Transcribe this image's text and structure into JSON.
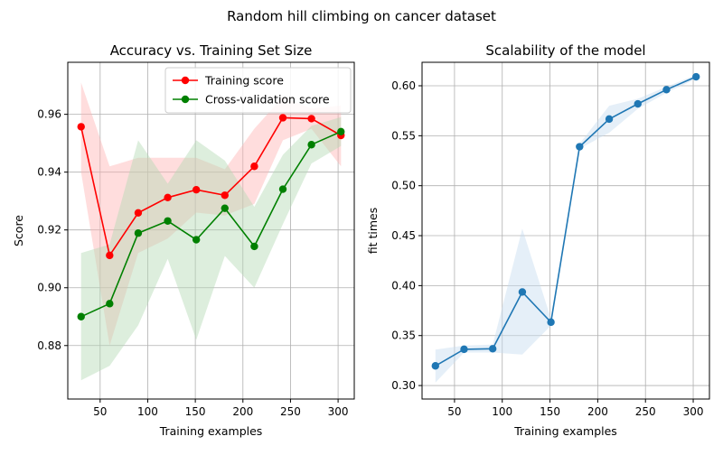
{
  "suptitle": "Random hill climbing on cancer dataset",
  "chart_data": [
    {
      "type": "line",
      "title": "Accuracy vs. Training Set Size",
      "xlabel": "Training examples",
      "ylabel": "Score",
      "xlim": [
        16,
        317
      ],
      "ylim": [
        0.8615,
        0.978
      ],
      "xticks": [
        50,
        100,
        150,
        200,
        250,
        300
      ],
      "yticks": [
        0.88,
        0.9,
        0.92,
        0.94,
        0.96
      ],
      "ytick_labels": [
        "0.88",
        "0.90",
        "0.92",
        "0.94",
        "0.96"
      ],
      "grid": true,
      "legend": "top-right",
      "x": [
        30,
        60,
        90,
        121,
        151,
        181,
        212,
        242,
        272,
        303
      ],
      "series": [
        {
          "name": "Training score",
          "color": "#ff0000",
          "fill_color": "#ffb3b3",
          "values": [
            0.9557,
            0.9112,
            0.9259,
            0.9312,
            0.9339,
            0.932,
            0.942,
            0.9588,
            0.9585,
            0.9527
          ],
          "lower": [
            0.94,
            0.88,
            0.912,
            0.917,
            0.926,
            0.925,
            0.929,
            0.951,
            0.955,
            0.942
          ],
          "upper": [
            0.971,
            0.942,
            0.945,
            0.945,
            0.945,
            0.941,
            0.955,
            0.966,
            0.962,
            0.963
          ]
        },
        {
          "name": "Cross-validation score",
          "color": "#008000",
          "fill_color": "#b3d9b3",
          "values": [
            0.89,
            0.8945,
            0.9189,
            0.9231,
            0.9166,
            0.9275,
            0.9143,
            0.9341,
            0.9495,
            0.954
          ],
          "lower": [
            0.868,
            0.873,
            0.887,
            0.91,
            0.882,
            0.911,
            0.9,
            0.922,
            0.943,
            0.949
          ],
          "upper": [
            0.912,
            0.915,
            0.951,
            0.936,
            0.951,
            0.944,
            0.928,
            0.946,
            0.956,
            0.959
          ]
        }
      ]
    },
    {
      "type": "line",
      "title": "Scalability of the model",
      "xlabel": "Training examples",
      "ylabel": "fit times",
      "xlim": [
        16,
        317
      ],
      "ylim": [
        0.2865,
        0.6235
      ],
      "xticks": [
        50,
        100,
        150,
        200,
        250,
        300
      ],
      "yticks": [
        0.3,
        0.35,
        0.4,
        0.45,
        0.5,
        0.55,
        0.6
      ],
      "ytick_labels": [
        "0.30",
        "0.35",
        "0.40",
        "0.45",
        "0.50",
        "0.55",
        "0.60"
      ],
      "grid": true,
      "x": [
        30,
        60,
        90,
        121,
        151,
        181,
        212,
        242,
        272,
        303
      ],
      "series": [
        {
          "color": "#1f77b4",
          "fill_color": "#c6dbef",
          "values": [
            0.3197,
            0.3363,
            0.3368,
            0.3936,
            0.3634,
            0.539,
            0.5667,
            0.5819,
            0.5961,
            0.609
          ],
          "lower": [
            0.303,
            0.333,
            0.333,
            0.331,
            0.36,
            0.537,
            0.553,
            0.577,
            0.593,
            0.607
          ],
          "upper": [
            0.336,
            0.34,
            0.341,
            0.457,
            0.367,
            0.542,
            0.58,
            0.587,
            0.599,
            0.611
          ]
        }
      ]
    }
  ]
}
